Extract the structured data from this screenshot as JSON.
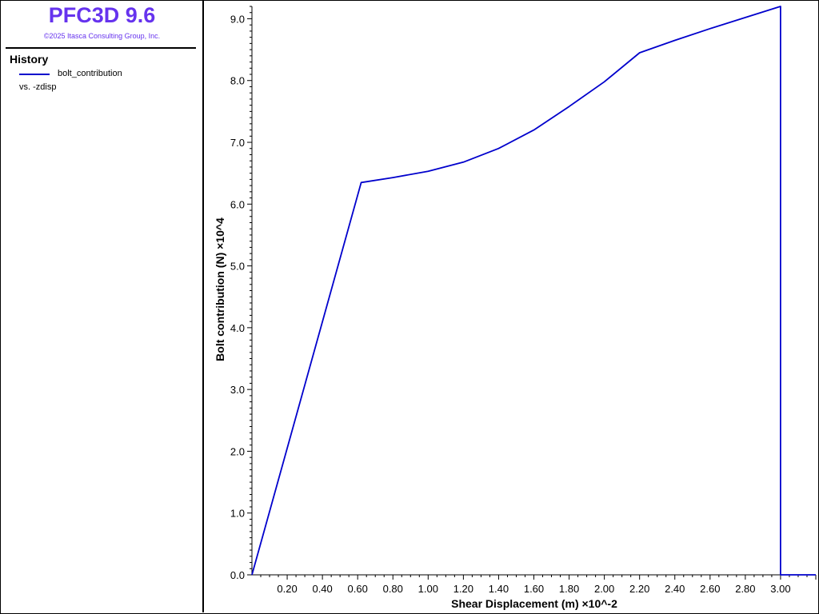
{
  "app": {
    "title": "PFC3D 9.6",
    "copyright": "©2025 Itasca Consulting Group, Inc."
  },
  "legend": {
    "heading": "History",
    "series_label": "bolt_contribution",
    "vs_label": "vs. -zdisp",
    "line_color": "#0000cc"
  },
  "chart_data": {
    "type": "line",
    "xlabel": "Shear Displacement (m)  ×10^-2",
    "ylabel": "Bolt contribution (N)  ×10^4",
    "xlim": [
      0,
      3.2
    ],
    "ylim": [
      0,
      9.2
    ],
    "x_ticks": [
      "0.20",
      "0.40",
      "0.60",
      "0.80",
      "1.00",
      "1.20",
      "1.40",
      "1.60",
      "1.80",
      "2.00",
      "2.20",
      "2.40",
      "2.60",
      "2.80",
      "3.00"
    ],
    "y_ticks": [
      "0.0",
      "1.0",
      "2.0",
      "3.0",
      "4.0",
      "5.0",
      "6.0",
      "7.0",
      "8.0",
      "9.0"
    ],
    "grid": false,
    "series": [
      {
        "name": "bolt_contribution",
        "color": "#0000cc",
        "x": [
          0,
          0.62,
          0.8,
          1.0,
          1.2,
          1.4,
          1.6,
          1.8,
          2.0,
          2.2,
          2.4,
          2.6,
          2.8,
          3.0,
          3.0,
          3.2
        ],
        "y": [
          0,
          6.35,
          6.43,
          6.53,
          6.68,
          6.9,
          7.2,
          7.58,
          7.98,
          8.45,
          8.65,
          8.84,
          9.02,
          9.2,
          0,
          0
        ]
      }
    ]
  }
}
